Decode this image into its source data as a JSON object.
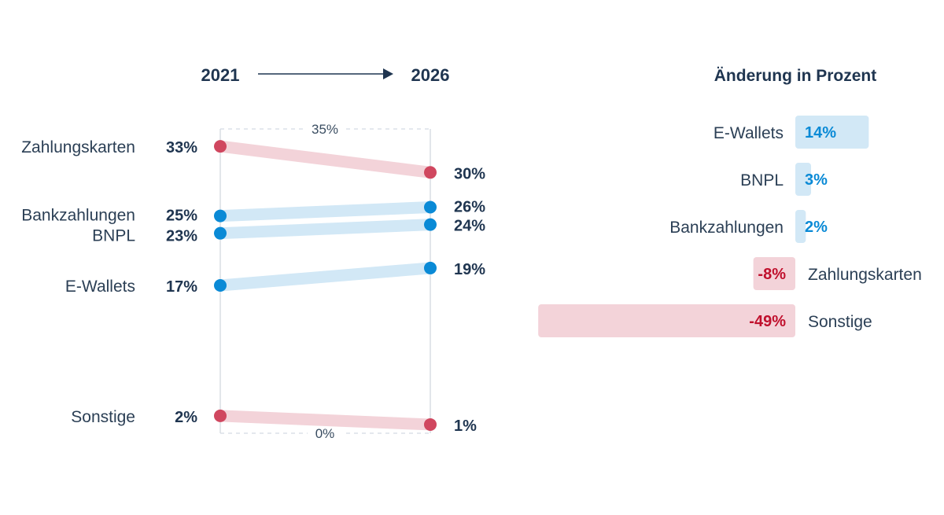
{
  "chart_data": [
    {
      "type": "slope",
      "start_label": "2021",
      "end_label": "2026",
      "y_top_label": "35%",
      "y_bottom_label": "0%",
      "ylim": [
        0,
        35
      ],
      "series": [
        {
          "name": "Zahlungskarten",
          "start": 33,
          "end": 30,
          "start_label": "33%",
          "end_label": "30%",
          "trend": "down"
        },
        {
          "name": "Bankzahlungen",
          "start": 25,
          "end": 26,
          "start_label": "25%",
          "end_label": "26%",
          "trend": "up"
        },
        {
          "name": "BNPL",
          "start": 23,
          "end": 24,
          "start_label": "23%",
          "end_label": "24%",
          "trend": "up"
        },
        {
          "name": "E-Wallets",
          "start": 17,
          "end": 19,
          "start_label": "17%",
          "end_label": "19%",
          "trend": "up"
        },
        {
          "name": "Sonstige",
          "start": 2,
          "end": 1,
          "start_label": "2%",
          "end_label": "1%",
          "trend": "down"
        }
      ]
    },
    {
      "type": "bar",
      "orientation": "horizontal",
      "title": "Änderung in Prozent",
      "categories": [
        "E-Wallets",
        "BNPL",
        "Bankzahlungen",
        "Zahlungskarten",
        "Sonstige"
      ],
      "values": [
        14,
        3,
        2,
        -8,
        -49
      ],
      "labels": [
        "14%",
        "3%",
        "2%",
        "-8%",
        "-49%"
      ]
    }
  ],
  "colors": {
    "up": "#0a8ad6",
    "up_light": "#d2e8f6",
    "down": "#d0475f",
    "down_light": "#f3d3d9",
    "down_text": "#c0102d",
    "text": "#1f3550"
  }
}
